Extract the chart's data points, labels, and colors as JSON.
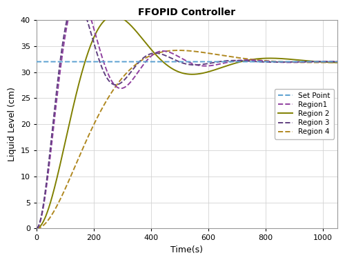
{
  "title": "FFOPID Controller",
  "xlabel": "Time(s)",
  "ylabel": "Liquid Level (cm)",
  "setpoint": 32,
  "xlim": [
    0,
    1050
  ],
  "ylim": [
    0,
    40
  ],
  "xticks": [
    0,
    200,
    400,
    600,
    800,
    1000
  ],
  "yticks": [
    0,
    5,
    10,
    15,
    20,
    25,
    30,
    35,
    40
  ],
  "figsize": [
    5.0,
    3.8
  ],
  "dpi": 100,
  "background_color": "#ffffff",
  "grid_color": "#d0d0d0",
  "setpoint_color": "#5aa0d0",
  "region1_color": "#9040a0",
  "region2_color": "#808000",
  "region3_color": "#604080",
  "region4_color": "#b08820",
  "legend_labels": [
    "Set Point",
    "Region1",
    "Region 2",
    "Region 3",
    "Region 4"
  ]
}
